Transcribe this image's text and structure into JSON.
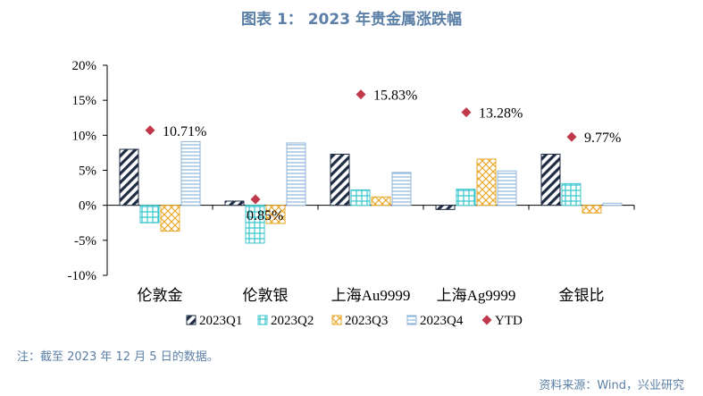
{
  "title": "图表 1：  2023 年贵金属涨跌幅",
  "footnote": "注：截至 2023 年 12 月 5 日的数据。",
  "source": "资料来源：Wind，兴业研究",
  "chart_data": {
    "type": "bar",
    "categories": [
      "伦敦金",
      "伦敦银",
      "上海Au9999",
      "上海Ag9999",
      "金银比"
    ],
    "series": [
      {
        "name": "2023Q1",
        "values": [
          8.0,
          0.6,
          7.3,
          -0.6,
          7.3
        ],
        "color": "#1f2d44",
        "pattern": "diagonal-hatch"
      },
      {
        "name": "2023Q2",
        "values": [
          -2.5,
          -5.4,
          2.2,
          2.3,
          3.1
        ],
        "color": "#38c6cc",
        "pattern": "grid"
      },
      {
        "name": "2023Q3",
        "values": [
          -3.7,
          -2.6,
          1.2,
          6.6,
          -1.1
        ],
        "color": "#e8a82a",
        "pattern": "crosshatch"
      },
      {
        "name": "2023Q4",
        "values": [
          9.1,
          8.9,
          4.7,
          4.9,
          0.3
        ],
        "color": "#8fb4d9",
        "pattern": "horizontal-lines"
      }
    ],
    "ytd": {
      "name": "YTD",
      "values": [
        10.71,
        0.85,
        15.83,
        13.28,
        9.77
      ],
      "labels": [
        "10.71%",
        "0.85%",
        "15.83%",
        "13.28%",
        "9.77%"
      ],
      "color": "#c0394b",
      "marker": "diamond"
    },
    "y_ticks": [
      "20%",
      "15%",
      "10%",
      "5%",
      "0%",
      "-5%",
      "-10%"
    ],
    "ylim": [
      -10,
      20
    ],
    "legend_position": "bottom",
    "grid": false
  }
}
